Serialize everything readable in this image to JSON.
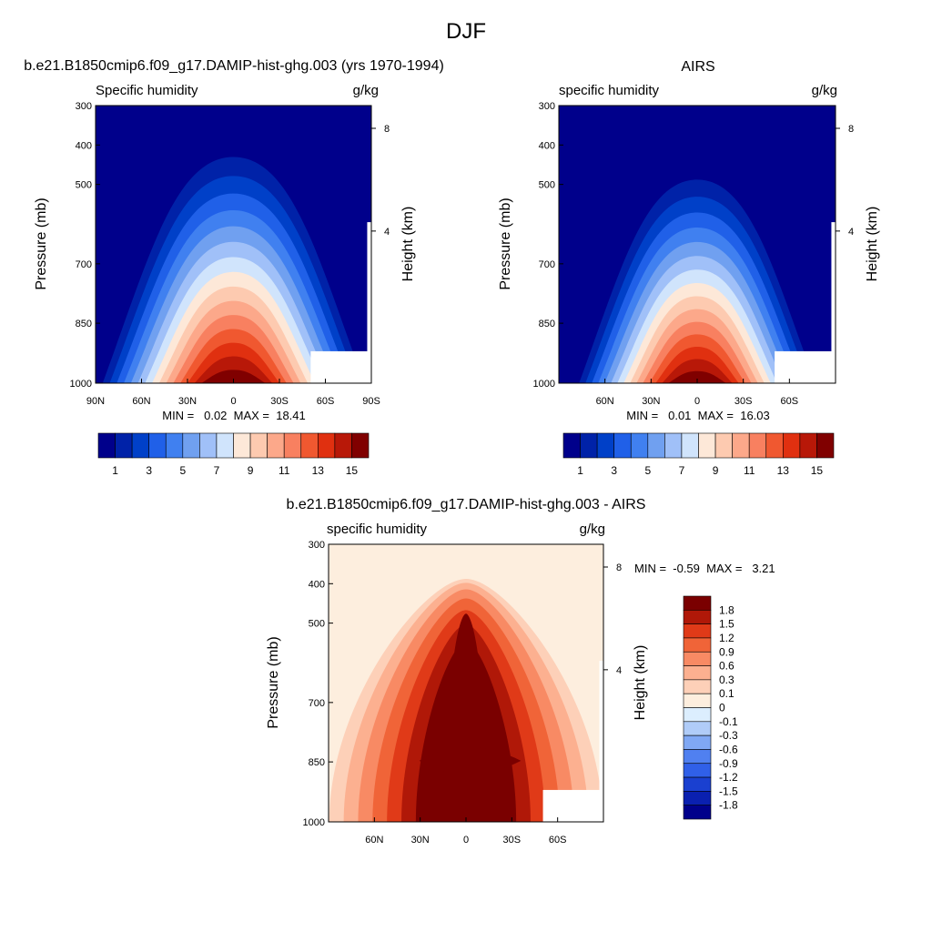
{
  "figure": {
    "title": "DJF"
  },
  "chart_data": [
    {
      "type": "heatmap",
      "title": "b.e21.B1850cmip6.f09_g17.DAMIP-hist-ghg.003 (yrs 1970-1994)",
      "left_subtitle": "Specific humidity",
      "right_subtitle": "g/kg",
      "ylabel": "Pressure (mb)",
      "y2label": "Height (km)",
      "y_ticks": [
        "300",
        "400",
        "500",
        "700",
        "850",
        "1000"
      ],
      "y2_ticks": [
        "8",
        "4"
      ],
      "x_ticks": [
        "90N",
        "60N",
        "30N",
        "0",
        "30S",
        "60S",
        "90S"
      ],
      "x_range": [
        90,
        -90
      ],
      "y_range": [
        1000,
        300
      ],
      "peak_latitude": 0,
      "min_max": "MIN =   0.02  MAX =  18.41",
      "min": 0.02,
      "max": 18.41,
      "colorbar": {
        "orientation": "horizontal",
        "colors": [
          "#00008b",
          "#0022a8",
          "#0040c8",
          "#2060e8",
          "#4080f0",
          "#70a0f0",
          "#a0c0f8",
          "#d0e4fc",
          "#fde8d8",
          "#fdcab0",
          "#fca88a",
          "#f88060",
          "#f05830",
          "#e03010",
          "#b81808",
          "#800000"
        ],
        "labels": [
          "1",
          "3",
          "5",
          "7",
          "9",
          "11",
          "13",
          "15"
        ]
      }
    },
    {
      "type": "heatmap",
      "title": "AIRS",
      "left_subtitle": "specific humidity",
      "right_subtitle": "g/kg",
      "ylabel": "Pressure (mb)",
      "y2label": "Height (km)",
      "y_ticks": [
        "300",
        "400",
        "500",
        "700",
        "850",
        "1000"
      ],
      "y2_ticks": [
        "8",
        "4"
      ],
      "x_ticks": [
        "60N",
        "30N",
        "0",
        "30S",
        "60S"
      ],
      "x_range": [
        90,
        -90
      ],
      "y_range": [
        1000,
        300
      ],
      "peak_latitude": 0,
      "min_max": "MIN =   0.01  MAX =  16.03",
      "min": 0.01,
      "max": 16.03,
      "colorbar": {
        "orientation": "horizontal",
        "colors": [
          "#00008b",
          "#0022a8",
          "#0040c8",
          "#2060e8",
          "#4080f0",
          "#70a0f0",
          "#a0c0f8",
          "#d0e4fc",
          "#fde8d8",
          "#fdcab0",
          "#fca88a",
          "#f88060",
          "#f05830",
          "#e03010",
          "#b81808",
          "#800000"
        ],
        "labels": [
          "1",
          "3",
          "5",
          "7",
          "9",
          "11",
          "13",
          "15"
        ]
      }
    },
    {
      "type": "heatmap",
      "title": "b.e21.B1850cmip6.f09_g17.DAMIP-hist-ghg.003 - AIRS",
      "left_subtitle": "specific humidity",
      "right_subtitle": "g/kg",
      "ylabel": "Pressure (mb)",
      "y2label": "Height (km)",
      "y_ticks": [
        "300",
        "400",
        "500",
        "700",
        "850",
        "1000"
      ],
      "y2_ticks": [
        "8",
        "4"
      ],
      "x_ticks": [
        "60N",
        "30N",
        "0",
        "30S",
        "60S"
      ],
      "x_range": [
        90,
        -90
      ],
      "y_range": [
        1000,
        300
      ],
      "peak_latitude": 0,
      "min_max": "MIN =  -0.59  MAX =   3.21",
      "min": -0.59,
      "max": 3.21,
      "colorbar": {
        "orientation": "vertical",
        "colors": [
          "#00008b",
          "#0a20b0",
          "#1a40d0",
          "#3060e8",
          "#5080f0",
          "#80a8f4",
          "#b0ccf8",
          "#dceefe",
          "#fdeede",
          "#fdd0b8",
          "#fcb090",
          "#f88a64",
          "#f06438",
          "#e03a18",
          "#b01808",
          "#7a0000"
        ],
        "labels": [
          "1.8",
          "1.5",
          "1.2",
          "0.9",
          "0.6",
          "0.3",
          "0.1",
          "0",
          "-0.1",
          "-0.3",
          "-0.6",
          "-0.9",
          "-1.2",
          "-1.5",
          "-1.8"
        ]
      }
    }
  ]
}
